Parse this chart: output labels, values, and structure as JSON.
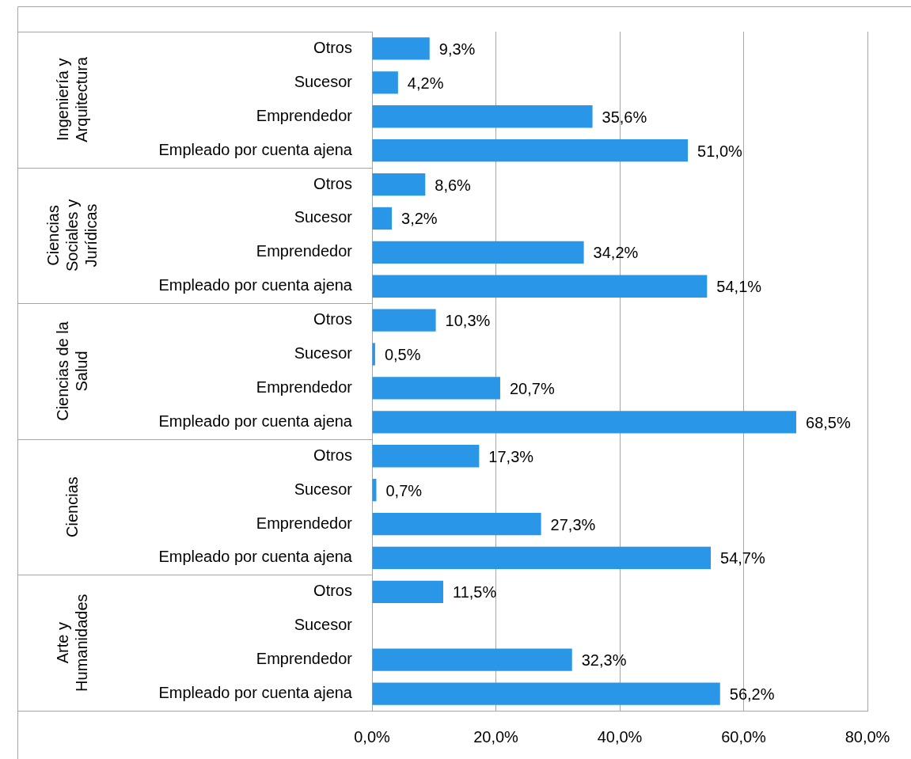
{
  "chart_data": {
    "type": "bar",
    "orientation": "horizontal",
    "categories": [
      "Otros",
      "Sucesor",
      "Emprendedor",
      "Empleado por cuenta ajena",
      "Otros",
      "Sucesor",
      "Emprendedor",
      "Empleado por cuenta ajena",
      "Otros",
      "Sucesor",
      "Emprendedor",
      "Empleado por cuenta ajena",
      "Otros",
      "Sucesor",
      "Emprendedor",
      "Empleado por cuenta ajena",
      "Otros",
      "Sucesor",
      "Emprendedor",
      "Empleado por cuenta ajena"
    ],
    "values": [
      9.3,
      4.2,
      35.6,
      51.0,
      8.6,
      3.2,
      34.2,
      54.1,
      10.3,
      0.5,
      20.7,
      68.5,
      17.3,
      0.7,
      27.3,
      54.7,
      11.5,
      null,
      32.3,
      56.2
    ],
    "value_labels": [
      "9,3%",
      "4,2%",
      "35,6%",
      "51,0%",
      "8,6%",
      "3,2%",
      "34,2%",
      "54,1%",
      "10,3%",
      "0,5%",
      "20,7%",
      "68,5%",
      "17,3%",
      "0,7%",
      "27,3%",
      "54,7%",
      "11,5%",
      null,
      "32,3%",
      "56,2%"
    ],
    "color": "#2a96e8",
    "annotations": [
      "Ingeniería y Arquitectura",
      "Ciencias Sociales y Jurídicas",
      "Ciencias de la Salud",
      "Ciencias",
      "Arte y Humanidades"
    ],
    "xlim": [
      0,
      80
    ],
    "xticks": [
      {
        "value": 0,
        "label": "0,0%"
      },
      {
        "value": 20,
        "label": "20,0%"
      },
      {
        "value": 40,
        "label": "40,0%"
      },
      {
        "value": 60,
        "label": "60,0%"
      },
      {
        "value": 80,
        "label": "80,0%"
      }
    ],
    "grid": "x",
    "legend": false
  }
}
